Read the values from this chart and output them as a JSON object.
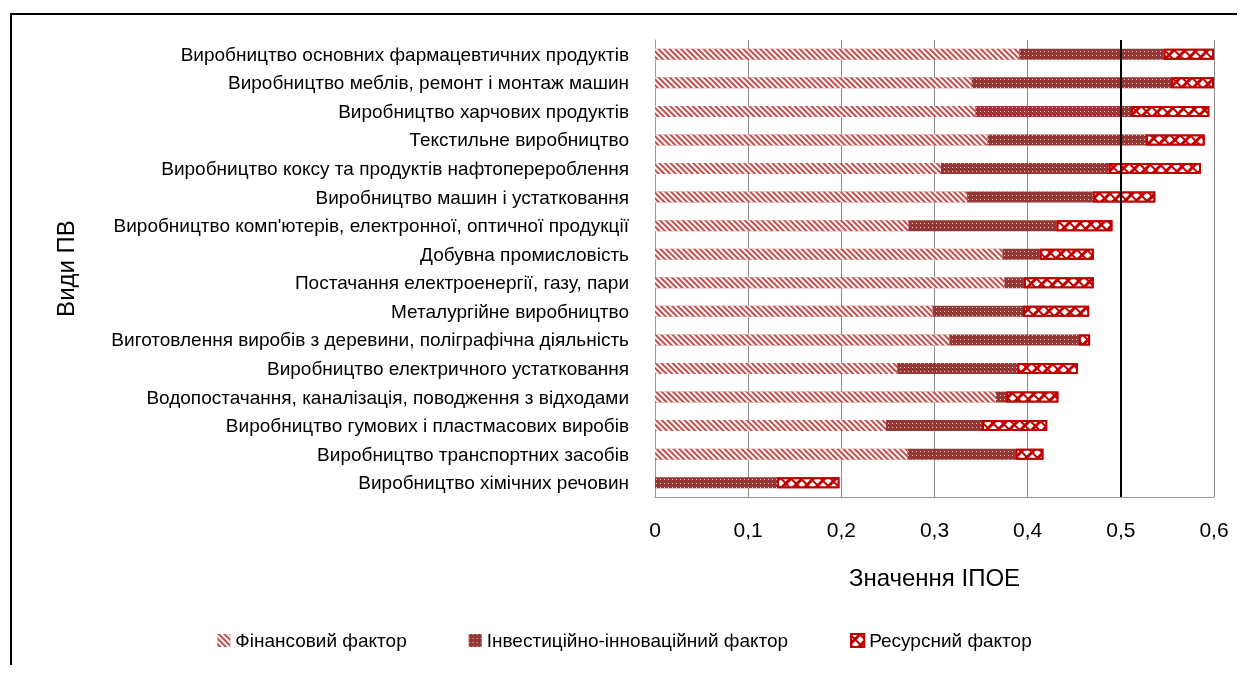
{
  "chart_data": {
    "type": "bar",
    "orientation": "horizontal",
    "stacked": true,
    "xlabel": "Значення ІПОЕ",
    "ylabel": "Види ПВ",
    "categories": [
      "Виробництво основних фармацевтичних продуктів",
      "Виробництво меблів, ремонт і монтаж машин",
      "Виробництво харчових продуктів",
      "Текстильне виробництво",
      "Виробництво коксу та продуктів нафтоперероблення",
      "Виробництво машин і устатковання",
      "Виробництво комп'ютерів, електронної, оптичної продукції",
      "Добувна промисловість",
      "Постачання електроенергії, газу, пари",
      "Металургійне виробництво",
      "Виготовлення виробів з деревини, поліграфічна діяльність",
      "Виробництво електричного устатковання",
      "Водопостачання, каналізація, поводження з відходами",
      "Виробництво гумових і пластмасових виробів",
      "Виробництво транспортних засобів",
      "Виробництво хімічних речовин"
    ],
    "series": [
      {
        "name": "Фінансовий фактор",
        "color": "#c0504d",
        "values": [
          0.391,
          0.34,
          0.344,
          0.357,
          0.307,
          0.335,
          0.272,
          0.373,
          0.375,
          0.298,
          0.316,
          0.26,
          0.366,
          0.248,
          0.271,
          0
        ]
      },
      {
        "name": "Інвестиційно-інноваційний фактор",
        "color": "#953735",
        "values": [
          0.155,
          0.214,
          0.167,
          0.17,
          0.18,
          0.135,
          0.159,
          0.04,
          0.021,
          0.097,
          0.139,
          0.129,
          0.011,
          0.103,
          0.116,
          0.131
        ]
      },
      {
        "name": "Ресурсний фактор",
        "color": "#c00000",
        "values": [
          0.054,
          0.046,
          0.084,
          0.063,
          0.099,
          0.067,
          0.06,
          0.058,
          0.075,
          0.071,
          0.012,
          0.065,
          0.056,
          0.07,
          0.03,
          0.067
        ]
      }
    ],
    "xlim": [
      0,
      0.6
    ],
    "xticks": [
      0,
      {
        "value": 0.1,
        "label": "0,1"
      },
      {
        "value": 0.2,
        "label": "0,2"
      },
      {
        "value": 0.3,
        "label": "0,3"
      },
      {
        "value": 0.4,
        "label": "0,4"
      },
      {
        "value": 0.5,
        "label": "0,5"
      },
      {
        "value": 0.6,
        "label": "0,6"
      }
    ],
    "grid": "x",
    "legend": "bottom",
    "ref_lines": [
      {
        "axis": "x",
        "value": 0.5,
        "color": "#000000"
      }
    ]
  }
}
